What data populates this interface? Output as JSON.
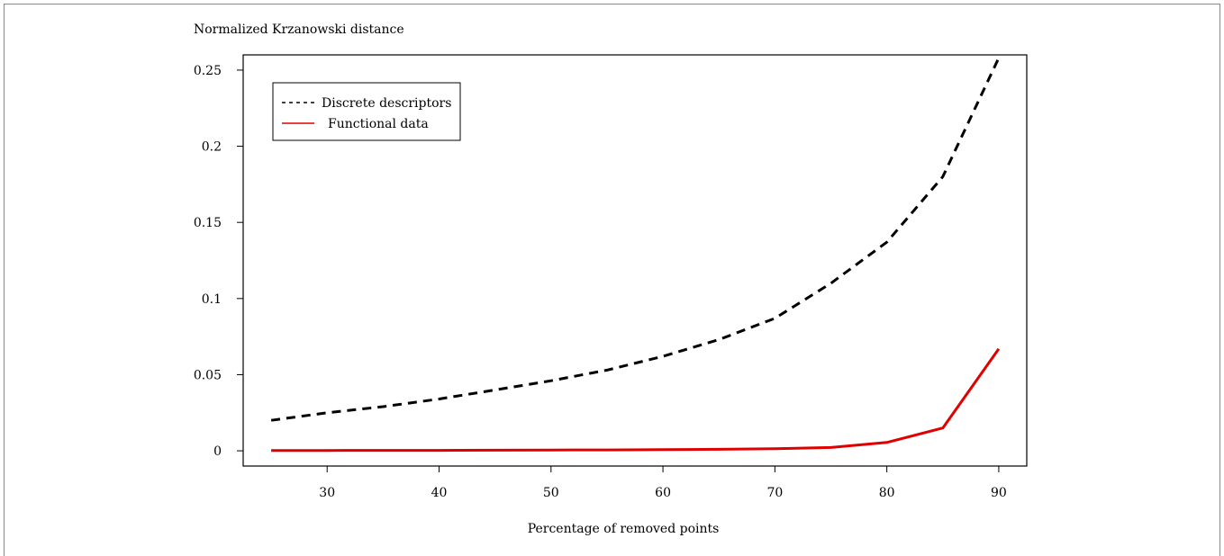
{
  "chart_data": {
    "type": "line",
    "title": "",
    "xlabel": "Percentage of removed points",
    "ylabel": "Normalized Krzanowski distance",
    "x": [
      25,
      30,
      35,
      40,
      45,
      50,
      55,
      60,
      65,
      70,
      75,
      80,
      85,
      90
    ],
    "xlim": [
      22.5,
      92.5
    ],
    "ylim": [
      -0.01,
      0.26
    ],
    "xticks": [
      30,
      40,
      50,
      60,
      70,
      80,
      90
    ],
    "yticks": [
      0,
      0.05,
      0.1,
      0.15,
      0.2,
      0.25
    ],
    "ytick_labels": [
      "0",
      "0.05",
      "0.1",
      "0.15",
      "0.2",
      "0.25"
    ],
    "grid": false,
    "legend_position": "top-left",
    "series": [
      {
        "name": "Discrete descriptors",
        "color": "#000000",
        "dash": "dashed",
        "values": [
          0.02,
          0.025,
          0.029,
          0.034,
          0.04,
          0.046,
          0.053,
          0.062,
          0.073,
          0.087,
          0.11,
          0.137,
          0.18,
          0.258
        ]
      },
      {
        "name": "Functional data",
        "color": "#e00000",
        "dash": "solid",
        "values": [
          0.0002,
          0.0002,
          0.0003,
          0.0003,
          0.0004,
          0.0005,
          0.0006,
          0.0008,
          0.001,
          0.0014,
          0.0022,
          0.0055,
          0.015,
          0.067
        ]
      }
    ]
  }
}
